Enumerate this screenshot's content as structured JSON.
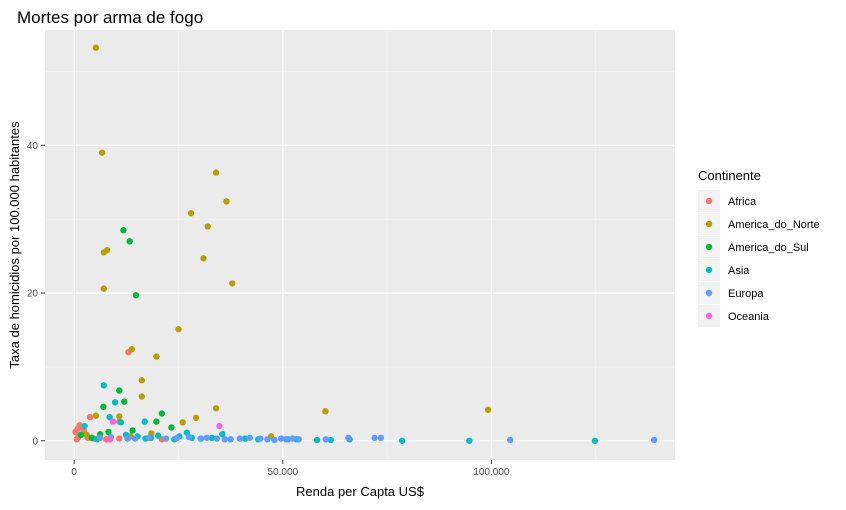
{
  "chart_data": {
    "type": "scatter",
    "title": "Mortes por arma de fogo",
    "xlabel": "Renda per Capta US$",
    "ylabel": "Taxa de homicidios por 100.000 habitantes",
    "xlim": [
      -7000,
      144000
    ],
    "ylim": [
      -2.6,
      55.6
    ],
    "x_ticks": [
      0,
      50000,
      100000
    ],
    "x_tick_labels": [
      "0",
      "50.000",
      "100.000"
    ],
    "y_ticks": [
      0,
      20,
      40
    ],
    "y_tick_labels": [
      "0",
      "20",
      "40"
    ],
    "grid": true,
    "legend": {
      "title": "Continente",
      "placement": "right"
    },
    "series": [
      {
        "name": "Africa",
        "color": "#F8766D",
        "points": [
          [
            300,
            1.2
          ],
          [
            800,
            1.6
          ],
          [
            1300,
            2.1
          ],
          [
            1700,
            1.9
          ],
          [
            2300,
            1.4
          ],
          [
            1000,
            0.5
          ],
          [
            3300,
            0.4
          ],
          [
            3800,
            3.2
          ],
          [
            4700,
            0.3
          ],
          [
            7700,
            0.2
          ],
          [
            10800,
            0.3
          ],
          [
            10800,
            2.6
          ],
          [
            13000,
            12.0
          ],
          [
            21000,
            0.2
          ],
          [
            600,
            0.2
          ]
        ]
      },
      {
        "name": "America_do_Norte",
        "color": "#B79F00",
        "points": [
          [
            5200,
            53.2
          ],
          [
            6700,
            39.0
          ],
          [
            7100,
            25.5
          ],
          [
            7900,
            25.8
          ],
          [
            7100,
            20.6
          ],
          [
            13800,
            12.4
          ],
          [
            19700,
            11.4
          ],
          [
            16200,
            8.2
          ],
          [
            16200,
            6.0
          ],
          [
            25000,
            15.1
          ],
          [
            28000,
            30.8
          ],
          [
            31000,
            24.7
          ],
          [
            32000,
            29.0
          ],
          [
            34000,
            36.3
          ],
          [
            36500,
            32.4
          ],
          [
            37900,
            21.3
          ],
          [
            34000,
            4.4
          ],
          [
            29200,
            3.1
          ],
          [
            26000,
            2.5
          ],
          [
            5200,
            3.4
          ],
          [
            10800,
            3.3
          ],
          [
            60200,
            4.0
          ],
          [
            99200,
            4.2
          ],
          [
            47200,
            0.6
          ],
          [
            3000,
            0.8
          ],
          [
            13500,
            0.6
          ],
          [
            18500,
            1.0
          ]
        ]
      },
      {
        "name": "America_do_Sul",
        "color": "#00BA38",
        "points": [
          [
            11800,
            28.5
          ],
          [
            13300,
            27.0
          ],
          [
            14800,
            19.7
          ],
          [
            10800,
            6.8
          ],
          [
            12000,
            5.3
          ],
          [
            7000,
            4.6
          ],
          [
            21000,
            3.7
          ],
          [
            19700,
            2.6
          ],
          [
            23300,
            1.8
          ],
          [
            14000,
            1.4
          ],
          [
            8200,
            1.2
          ],
          [
            6200,
            0.9
          ],
          [
            1600,
            0.8
          ],
          [
            4200,
            0.4
          ]
        ]
      },
      {
        "name": "Asia",
        "color": "#00BFC4",
        "points": [
          [
            7100,
            7.5
          ],
          [
            9800,
            5.2
          ],
          [
            8500,
            3.2
          ],
          [
            2500,
            2.0
          ],
          [
            16900,
            2.6
          ],
          [
            11200,
            2.5
          ],
          [
            12400,
            0.8
          ],
          [
            15200,
            0.6
          ],
          [
            17100,
            0.3
          ],
          [
            18400,
            0.4
          ],
          [
            20100,
            0.7
          ],
          [
            25200,
            0.6
          ],
          [
            27000,
            1.1
          ],
          [
            28200,
            0.4
          ],
          [
            30400,
            0.3
          ],
          [
            33000,
            0.4
          ],
          [
            35500,
            0.9
          ],
          [
            41000,
            0.3
          ],
          [
            44100,
            0.2
          ],
          [
            51200,
            0.2
          ],
          [
            53300,
            0.2
          ],
          [
            58200,
            0.1
          ],
          [
            61500,
            0.1
          ],
          [
            66000,
            0.2
          ],
          [
            78600,
            0.0
          ],
          [
            94700,
            0.0
          ],
          [
            124800,
            0.0
          ],
          [
            5500,
            0.2
          ],
          [
            24000,
            0.2
          ]
        ]
      },
      {
        "name": "Europa",
        "color": "#619CFF",
        "points": [
          [
            6200,
            0.4
          ],
          [
            8800,
            0.5
          ],
          [
            12800,
            0.3
          ],
          [
            14600,
            0.3
          ],
          [
            17900,
            0.4
          ],
          [
            22000,
            0.3
          ],
          [
            24600,
            0.4
          ],
          [
            27500,
            0.5
          ],
          [
            30300,
            0.3
          ],
          [
            31800,
            0.4
          ],
          [
            34200,
            0.3
          ],
          [
            36100,
            0.2
          ],
          [
            37500,
            0.2
          ],
          [
            39700,
            0.3
          ],
          [
            42100,
            0.4
          ],
          [
            44600,
            0.3
          ],
          [
            46300,
            0.2
          ],
          [
            48000,
            0.1
          ],
          [
            49600,
            0.3
          ],
          [
            50800,
            0.2
          ],
          [
            52300,
            0.3
          ],
          [
            53800,
            0.2
          ],
          [
            60300,
            0.2
          ],
          [
            65700,
            0.4
          ],
          [
            72000,
            0.4
          ],
          [
            73500,
            0.4
          ],
          [
            104500,
            0.1
          ],
          [
            139000,
            0.1
          ]
        ]
      },
      {
        "name": "Oceania",
        "color": "#F564E3",
        "points": [
          [
            8600,
            0.2
          ],
          [
            9300,
            2.6
          ],
          [
            34800,
            2.0
          ]
        ]
      }
    ]
  }
}
